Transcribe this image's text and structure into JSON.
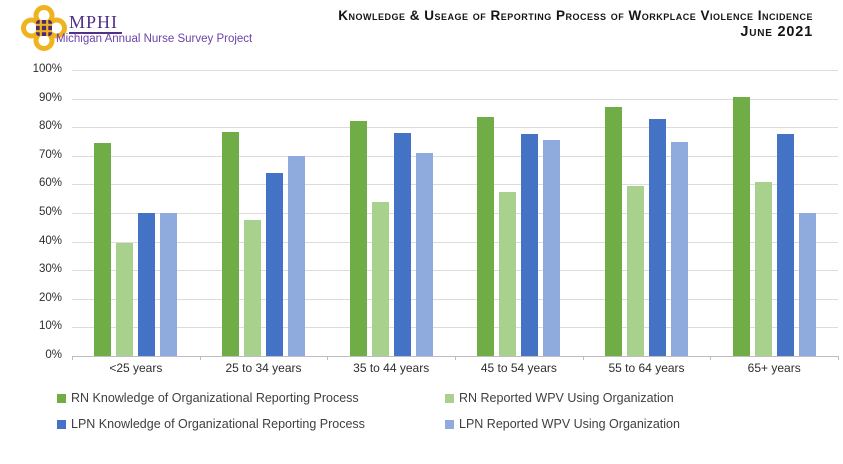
{
  "header": {
    "logo": {
      "acronym": "MPHI",
      "subtitle": "Michigan Annual Nurse Survey Project",
      "gold": "#EFB320",
      "purple": "#503087"
    },
    "title_line1": "Knowledge & Useage of Reporting Process of Workplace Violence Incidence",
    "title_line2": "June 2021"
  },
  "chart_data": {
    "type": "bar",
    "title": "Knowledge & Useage of Reporting Process of Workplace Violence Incidence June 2021",
    "categories": [
      "<25 years",
      "25 to 34 years",
      "35 to 44 years",
      "45 to 54 years",
      "55 to 64 years",
      "65+ years"
    ],
    "series": [
      {
        "name": "RN Knowledge of Organizational Reporting Process",
        "color": "#70AD47",
        "values": [
          74.5,
          78.5,
          82,
          83.5,
          87,
          90.5
        ]
      },
      {
        "name": "RN Reported WPV Using Organization",
        "color": "#A9D18E",
        "values": [
          39.5,
          47.5,
          54,
          57.5,
          59.5,
          61
        ]
      },
      {
        "name": "LPN Knowledge of Organizational Reporting Process",
        "color": "#4472C4",
        "values": [
          50,
          64,
          78,
          77.5,
          83,
          77.5
        ]
      },
      {
        "name": "LPN Reported WPV Using Organization",
        "color": "#8FAADC",
        "values": [
          50,
          70,
          71,
          75.5,
          75,
          50
        ]
      }
    ],
    "y_ticks": [
      "0%",
      "10%",
      "20%",
      "30%",
      "40%",
      "50%",
      "60%",
      "70%",
      "80%",
      "90%",
      "100%"
    ],
    "ylim": [
      0,
      100
    ],
    "xlabel": "",
    "ylabel": "",
    "grid": true,
    "legend_position": "bottom"
  }
}
